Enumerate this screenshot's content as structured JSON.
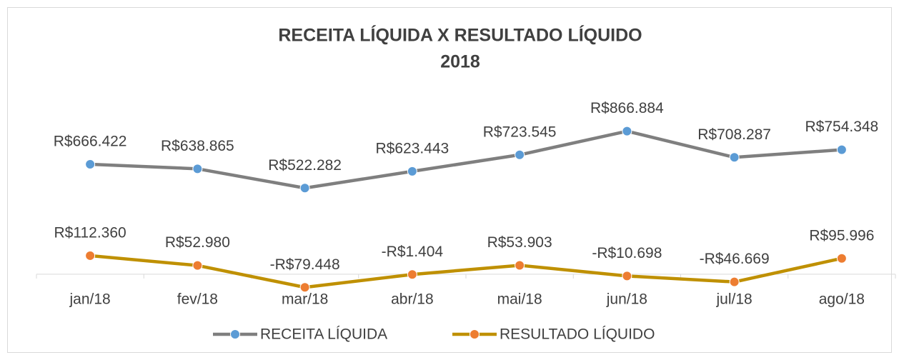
{
  "chart_data": {
    "type": "line",
    "title": [
      "RECEITA LÍQUIDA X RESULTADO LÍQUIDO",
      "2018"
    ],
    "categories": [
      "jan/18",
      "fev/18",
      "mar/18",
      "abr/18",
      "mai/18",
      "jun/18",
      "jul/18",
      "ago/18"
    ],
    "series": [
      {
        "name": "RECEITA LÍQUIDA",
        "color": "#7f7f7f",
        "marker_color": "#5b9bd5",
        "values": [
          666422,
          638865,
          522282,
          623443,
          723545,
          866884,
          708287,
          754348
        ],
        "value_labels": [
          "R$666.422",
          "R$638.865",
          "R$522.282",
          "R$623.443",
          "R$723.545",
          "R$866.884",
          "R$708.287",
          "R$754.348"
        ]
      },
      {
        "name": "RESULTADO LÍQUIDO",
        "color": "#bf9000",
        "marker_color": "#ed7d31",
        "values": [
          112360,
          52980,
          -79448,
          -1404,
          53903,
          -10698,
          -46669,
          95996
        ],
        "value_labels": [
          "R$112.360",
          "R$52.980",
          "-R$79.448",
          "-R$1.404",
          "R$53.903",
          "-R$10.698",
          "-R$46.669",
          "R$95.996"
        ]
      }
    ],
    "ylim": [
      -100000,
      900000
    ],
    "legend": "bottom"
  }
}
